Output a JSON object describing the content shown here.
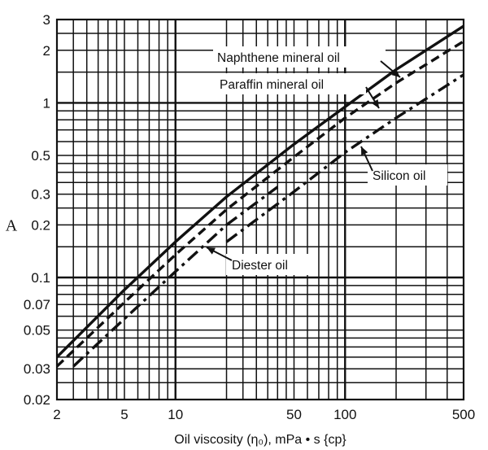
{
  "chart_data": {
    "type": "line",
    "title": "",
    "xlabel": "Oil viscosity (η₀), mPa • s {cp}",
    "ylabel": "A",
    "x_scale": "log",
    "y_scale": "log",
    "xlim": [
      2,
      500
    ],
    "ylim": [
      0.02,
      3
    ],
    "grid": true,
    "x_ticks": [
      2,
      5,
      10,
      50,
      100,
      500
    ],
    "x_tick_labels": [
      "2",
      "5",
      "10",
      "50",
      "100",
      "500"
    ],
    "y_ticks": [
      0.02,
      0.03,
      0.05,
      0.07,
      0.1,
      0.2,
      0.3,
      0.5,
      1,
      2,
      3
    ],
    "y_tick_labels": [
      "0.02",
      "0.03",
      "0.05",
      "0.07",
      "0.1",
      "0.2",
      "0.3",
      "0.5",
      "1",
      "2",
      "3"
    ],
    "series": [
      {
        "name": "Naphthene mineral oil",
        "style": "solid",
        "points": [
          [
            2,
            0.035
          ],
          [
            5,
            0.085
          ],
          [
            10,
            0.16
          ],
          [
            20,
            0.29
          ],
          [
            50,
            0.58
          ],
          [
            100,
            0.95
          ],
          [
            200,
            1.55
          ],
          [
            500,
            2.75
          ]
        ]
      },
      {
        "name": "Paraffin mineral oil",
        "style": "dashed",
        "points": [
          [
            2,
            0.031
          ],
          [
            5,
            0.072
          ],
          [
            10,
            0.135
          ],
          [
            20,
            0.245
          ],
          [
            50,
            0.49
          ],
          [
            100,
            0.82
          ],
          [
            200,
            1.3
          ],
          [
            500,
            2.25
          ]
        ]
      },
      {
        "name": "Silicon oil",
        "style": "dashdot",
        "points": [
          [
            20,
            0.16
          ],
          [
            50,
            0.31
          ],
          [
            100,
            0.52
          ],
          [
            200,
            0.82
          ],
          [
            500,
            1.45
          ]
        ]
      },
      {
        "name": "Diester oil",
        "style": "dashdot",
        "points": [
          [
            2.5,
            0.031
          ],
          [
            5,
            0.058
          ],
          [
            10,
            0.108
          ],
          [
            20,
            0.2
          ],
          [
            40,
            0.33
          ]
        ]
      }
    ],
    "annotations": [
      {
        "text": "Naphthene mineral oil",
        "series": "Naphthene mineral oil"
      },
      {
        "text": "Paraffin mineral oil",
        "series": "Paraffin mineral oil"
      },
      {
        "text": "Silicon oil",
        "series": "Silicon oil"
      },
      {
        "text": "Diester oil",
        "series": "Diester oil"
      }
    ],
    "colors": {
      "line": "#111111",
      "grid": "#111111",
      "background": "#ffffff"
    }
  }
}
